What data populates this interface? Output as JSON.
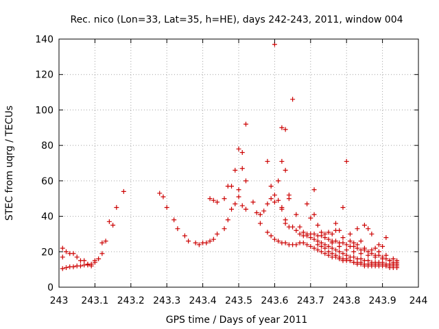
{
  "chart_data": {
    "type": "scatter",
    "title": "Rec. nico (Lon=33, Lat=35, h=HE), days 242-243, 2011, window 004",
    "xlabel": "GPS time / Days of year 2011",
    "ylabel": "STEC from uqrg / TECUs",
    "xlim": [
      243,
      244
    ],
    "ylim": [
      0,
      140
    ],
    "grid": true,
    "marker": "+",
    "color": "#cc0000",
    "x_ticks": [
      "243",
      "243.1",
      "243.2",
      "243.3",
      "243.4",
      "243.5",
      "243.6",
      "243.7",
      "243.8",
      "243.9",
      "244"
    ],
    "y_ticks": [
      "0",
      "20",
      "40",
      "60",
      "80",
      "100",
      "120",
      "140"
    ],
    "points": [
      [
        243.01,
        10.5
      ],
      [
        243.02,
        11
      ],
      [
        243.03,
        11.5
      ],
      [
        243.04,
        11.5
      ],
      [
        243.05,
        12
      ],
      [
        243.06,
        12
      ],
      [
        243.07,
        12.5
      ],
      [
        243.08,
        12.5
      ],
      [
        243.09,
        13
      ],
      [
        243.1,
        14
      ],
      [
        243.01,
        22
      ],
      [
        243.01,
        17
      ],
      [
        243.02,
        20
      ],
      [
        243.03,
        19
      ],
      [
        243.04,
        19
      ],
      [
        243.05,
        17
      ],
      [
        243.06,
        15
      ],
      [
        243.07,
        15
      ],
      [
        243.08,
        13
      ],
      [
        243.09,
        12
      ],
      [
        243.1,
        15
      ],
      [
        243.11,
        16
      ],
      [
        243.12,
        19
      ],
      [
        243.12,
        25
      ],
      [
        243.13,
        26
      ],
      [
        243.14,
        37
      ],
      [
        243.15,
        35
      ],
      [
        243.16,
        45
      ],
      [
        243.18,
        54
      ],
      [
        243.28,
        53
      ],
      [
        243.29,
        51
      ],
      [
        243.3,
        45
      ],
      [
        243.32,
        38
      ],
      [
        243.33,
        33
      ],
      [
        243.35,
        29
      ],
      [
        243.36,
        26
      ],
      [
        243.38,
        25
      ],
      [
        243.39,
        24
      ],
      [
        243.4,
        25
      ],
      [
        243.41,
        25
      ],
      [
        243.42,
        26
      ],
      [
        243.43,
        27
      ],
      [
        243.44,
        30
      ],
      [
        243.46,
        33
      ],
      [
        243.47,
        38
      ],
      [
        243.48,
        44
      ],
      [
        243.49,
        47
      ],
      [
        243.5,
        51
      ],
      [
        243.42,
        50
      ],
      [
        243.43,
        49
      ],
      [
        243.44,
        48
      ],
      [
        243.46,
        50
      ],
      [
        243.47,
        57
      ],
      [
        243.48,
        57
      ],
      [
        243.49,
        66
      ],
      [
        243.5,
        78
      ],
      [
        243.51,
        76
      ],
      [
        243.51,
        67
      ],
      [
        243.52,
        60
      ],
      [
        243.52,
        92
      ],
      [
        243.5,
        55
      ],
      [
        243.51,
        46
      ],
      [
        243.52,
        44
      ],
      [
        243.54,
        48
      ],
      [
        243.55,
        42
      ],
      [
        243.56,
        41
      ],
      [
        243.57,
        43
      ],
      [
        243.58,
        47
      ],
      [
        243.59,
        50
      ],
      [
        243.59,
        57
      ],
      [
        243.6,
        52
      ],
      [
        243.6,
        48
      ],
      [
        243.61,
        60
      ],
      [
        243.61,
        49
      ],
      [
        243.62,
        45
      ],
      [
        243.62,
        71
      ],
      [
        243.62,
        90
      ],
      [
        243.63,
        66
      ],
      [
        243.63,
        89
      ],
      [
        243.64,
        50
      ],
      [
        243.64,
        52
      ],
      [
        243.65,
        106
      ],
      [
        243.6,
        137
      ],
      [
        243.56,
        36
      ],
      [
        243.58,
        31
      ],
      [
        243.59,
        29
      ],
      [
        243.6,
        27
      ],
      [
        243.61,
        26
      ],
      [
        243.62,
        25
      ],
      [
        243.63,
        25
      ],
      [
        243.64,
        24
      ],
      [
        243.65,
        24
      ],
      [
        243.66,
        24
      ],
      [
        243.67,
        25
      ],
      [
        243.68,
        25
      ],
      [
        243.69,
        24
      ],
      [
        243.7,
        23
      ],
      [
        243.71,
        22
      ],
      [
        243.72,
        21
      ],
      [
        243.73,
        20
      ],
      [
        243.74,
        19
      ],
      [
        243.75,
        18
      ],
      [
        243.76,
        17
      ],
      [
        243.77,
        17
      ],
      [
        243.78,
        16
      ],
      [
        243.79,
        15
      ],
      [
        243.8,
        15
      ],
      [
        243.81,
        15
      ],
      [
        243.82,
        14
      ],
      [
        243.83,
        14
      ],
      [
        243.84,
        14
      ],
      [
        243.85,
        13
      ],
      [
        243.86,
        13
      ],
      [
        243.87,
        13
      ],
      [
        243.88,
        13
      ],
      [
        243.89,
        13
      ],
      [
        243.9,
        13
      ],
      [
        243.91,
        12
      ],
      [
        243.92,
        12
      ],
      [
        243.93,
        12
      ],
      [
        243.94,
        12
      ],
      [
        243.58,
        71
      ],
      [
        243.62,
        44
      ],
      [
        243.63,
        38
      ],
      [
        243.63,
        36
      ],
      [
        243.64,
        34
      ],
      [
        243.65,
        34
      ],
      [
        243.66,
        32
      ],
      [
        243.67,
        30
      ],
      [
        243.68,
        29
      ],
      [
        243.69,
        29
      ],
      [
        243.7,
        28
      ],
      [
        243.71,
        27
      ],
      [
        243.72,
        26
      ],
      [
        243.73,
        25
      ],
      [
        243.74,
        24
      ],
      [
        243.75,
        23
      ],
      [
        243.76,
        22
      ],
      [
        243.77,
        21
      ],
      [
        243.78,
        20
      ],
      [
        243.79,
        19
      ],
      [
        243.8,
        18
      ],
      [
        243.81,
        17
      ],
      [
        243.82,
        17
      ],
      [
        243.83,
        16
      ],
      [
        243.84,
        16
      ],
      [
        243.85,
        15
      ],
      [
        243.86,
        15
      ],
      [
        243.87,
        14
      ],
      [
        243.88,
        14
      ],
      [
        243.89,
        14
      ],
      [
        243.9,
        14
      ],
      [
        243.91,
        13
      ],
      [
        243.92,
        13
      ],
      [
        243.93,
        13
      ],
      [
        243.94,
        13
      ],
      [
        243.66,
        41
      ],
      [
        243.67,
        34
      ],
      [
        243.68,
        31
      ],
      [
        243.69,
        30
      ],
      [
        243.7,
        30
      ],
      [
        243.71,
        30
      ],
      [
        243.72,
        29
      ],
      [
        243.73,
        29
      ],
      [
        243.74,
        28
      ],
      [
        243.75,
        27
      ],
      [
        243.76,
        26
      ],
      [
        243.77,
        26
      ],
      [
        243.78,
        25
      ],
      [
        243.79,
        25
      ],
      [
        243.8,
        24
      ],
      [
        243.81,
        23
      ],
      [
        243.82,
        23
      ],
      [
        243.83,
        22
      ],
      [
        243.84,
        21
      ],
      [
        243.85,
        21
      ],
      [
        243.86,
        20
      ],
      [
        243.87,
        19
      ],
      [
        243.88,
        18
      ],
      [
        243.89,
        18
      ],
      [
        243.9,
        17
      ],
      [
        243.91,
        16
      ],
      [
        243.92,
        15
      ],
      [
        243.93,
        14
      ],
      [
        243.94,
        14
      ],
      [
        243.69,
        47
      ],
      [
        243.7,
        39
      ],
      [
        243.71,
        55
      ],
      [
        243.71,
        41
      ],
      [
        243.72,
        35
      ],
      [
        243.73,
        31
      ],
      [
        243.74,
        30
      ],
      [
        243.75,
        31
      ],
      [
        243.76,
        30
      ],
      [
        243.77,
        36
      ],
      [
        243.78,
        32
      ],
      [
        243.79,
        45
      ],
      [
        243.8,
        71
      ],
      [
        243.81,
        30
      ],
      [
        243.82,
        25
      ],
      [
        243.83,
        33
      ],
      [
        243.84,
        26
      ],
      [
        243.85,
        35
      ],
      [
        243.86,
        33
      ],
      [
        243.87,
        30
      ],
      [
        243.88,
        22
      ],
      [
        243.89,
        24
      ],
      [
        243.9,
        23
      ],
      [
        243.91,
        28
      ],
      [
        243.72,
        24
      ],
      [
        243.73,
        23
      ],
      [
        243.74,
        22
      ],
      [
        243.75,
        20
      ],
      [
        243.76,
        19
      ],
      [
        243.77,
        18
      ],
      [
        243.78,
        17
      ],
      [
        243.79,
        16
      ],
      [
        243.8,
        16
      ],
      [
        243.81,
        15
      ],
      [
        243.82,
        14
      ],
      [
        243.83,
        13
      ],
      [
        243.84,
        13
      ],
      [
        243.85,
        12
      ],
      [
        243.86,
        12
      ],
      [
        243.87,
        12
      ],
      [
        243.88,
        12
      ],
      [
        243.89,
        12
      ],
      [
        243.9,
        12
      ],
      [
        243.91,
        12
      ],
      [
        243.92,
        11
      ],
      [
        243.93,
        11
      ],
      [
        243.94,
        11
      ],
      [
        243.76,
        25
      ],
      [
        243.78,
        23
      ],
      [
        243.8,
        21
      ],
      [
        243.82,
        20
      ],
      [
        243.84,
        19
      ],
      [
        243.86,
        18
      ],
      [
        243.88,
        17
      ],
      [
        243.9,
        16
      ],
      [
        243.92,
        15
      ],
      [
        243.94,
        15
      ],
      [
        243.77,
        32
      ],
      [
        243.79,
        28
      ],
      [
        243.81,
        26
      ],
      [
        243.83,
        24
      ],
      [
        243.85,
        22
      ],
      [
        243.87,
        21
      ],
      [
        243.89,
        20
      ],
      [
        243.91,
        18
      ],
      [
        243.93,
        16
      ]
    ]
  }
}
